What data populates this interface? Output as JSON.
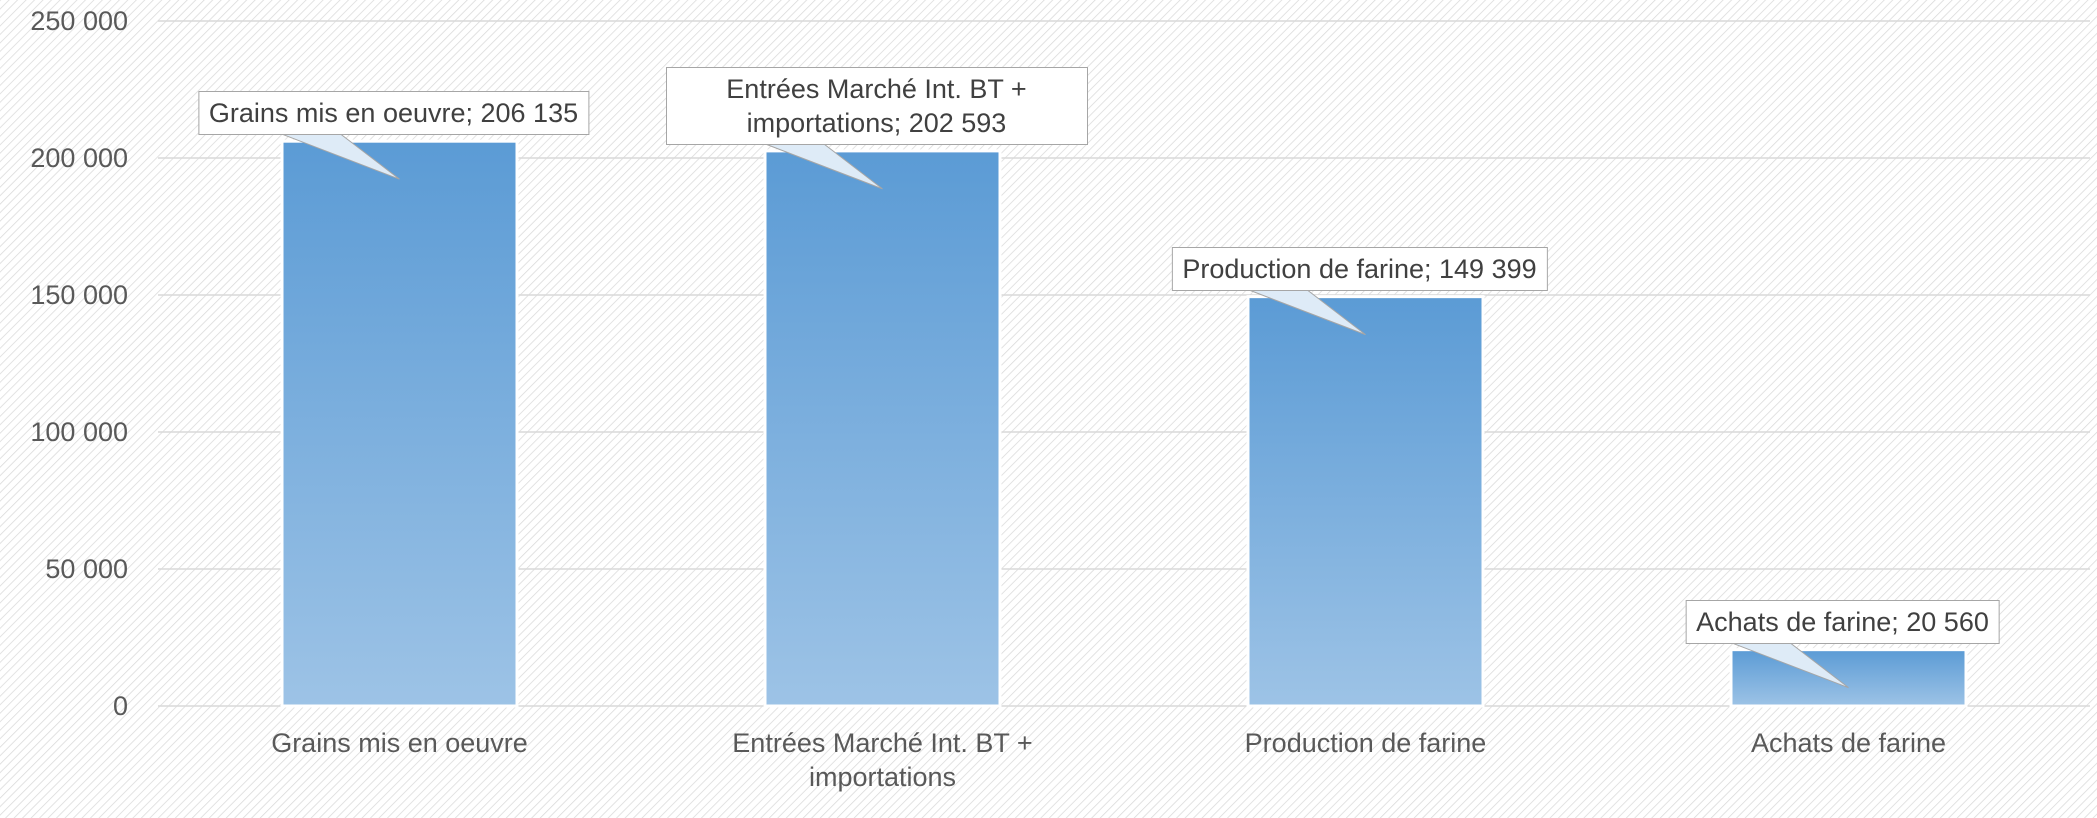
{
  "chart_data": {
    "type": "bar",
    "categories": [
      "Grains mis en oeuvre",
      "Entrées Marché Int. BT + importations",
      "Production de farine",
      "Achats de farine"
    ],
    "values": [
      206135,
      202593,
      149399,
      20560
    ],
    "value_labels": [
      "Grains mis en oeuvre; 206 135",
      "Entrées Marché Int. BT + importations; 202 593",
      "Production de farine; 149 399",
      "Achats de farine; 20 560"
    ],
    "color": "#5b9bd5",
    "ylim": [
      0,
      250000
    ],
    "yticks": [
      0,
      {
        "value": 50000,
        "label": "50 000"
      },
      {
        "value": 100000,
        "label": "100 000"
      },
      {
        "value": 150000,
        "label": "150 000"
      },
      {
        "value": 200000,
        "label": "200 000"
      },
      {
        "value": 250000,
        "label": "250 000"
      }
    ],
    "grid": true
  }
}
